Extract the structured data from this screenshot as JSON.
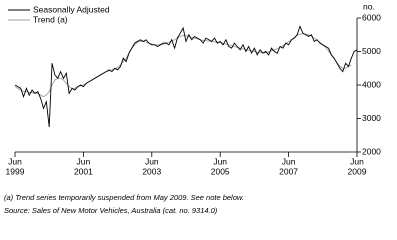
{
  "chart_data": {
    "type": "line",
    "y_label": "no.",
    "notes": [
      "(a) Trend series temporarily suspended from May 2009. See note below.",
      "Source: Sales of New Motor Vehicles, Australia (cat. no. 9314.0)"
    ],
    "x": [
      "1999-06",
      "1999-07",
      "1999-08",
      "1999-09",
      "1999-10",
      "1999-11",
      "1999-12",
      "2000-01",
      "2000-02",
      "2000-03",
      "2000-04",
      "2000-05",
      "2000-06",
      "2000-07",
      "2000-08",
      "2000-09",
      "2000-10",
      "2000-11",
      "2000-12",
      "2001-01",
      "2001-02",
      "2001-03",
      "2001-04",
      "2001-05",
      "2001-06",
      "2001-07",
      "2001-08",
      "2001-09",
      "2001-10",
      "2001-11",
      "2001-12",
      "2002-01",
      "2002-02",
      "2002-03",
      "2002-04",
      "2002-05",
      "2002-06",
      "2002-07",
      "2002-08",
      "2002-09",
      "2002-10",
      "2002-11",
      "2002-12",
      "2003-01",
      "2003-02",
      "2003-03",
      "2003-04",
      "2003-05",
      "2003-06",
      "2003-07",
      "2003-08",
      "2003-09",
      "2003-10",
      "2003-11",
      "2003-12",
      "2004-01",
      "2004-02",
      "2004-03",
      "2004-04",
      "2004-05",
      "2004-06",
      "2004-07",
      "2004-08",
      "2004-09",
      "2004-10",
      "2004-11",
      "2004-12",
      "2005-01",
      "2005-02",
      "2005-03",
      "2005-04",
      "2005-05",
      "2005-06",
      "2005-07",
      "2005-08",
      "2005-09",
      "2005-10",
      "2005-11",
      "2005-12",
      "2006-01",
      "2006-02",
      "2006-03",
      "2006-04",
      "2006-05",
      "2006-06",
      "2006-07",
      "2006-08",
      "2006-09",
      "2006-10",
      "2006-11",
      "2006-12",
      "2007-01",
      "2007-02",
      "2007-03",
      "2007-04",
      "2007-05",
      "2007-06",
      "2007-07",
      "2007-08",
      "2007-09",
      "2007-10",
      "2007-11",
      "2007-12",
      "2008-01",
      "2008-02",
      "2008-03",
      "2008-04",
      "2008-05",
      "2008-06",
      "2008-07",
      "2008-08",
      "2008-09",
      "2008-10",
      "2008-11",
      "2008-12",
      "2009-01",
      "2009-02",
      "2009-03",
      "2009-04",
      "2009-05",
      "2009-06"
    ],
    "series": [
      {
        "name": "Seasonally Adjusted",
        "color": "#000000",
        "values": [
          4000,
          3950,
          3900,
          3650,
          3900,
          3700,
          3850,
          3750,
          3800,
          3600,
          3300,
          3500,
          2750,
          4650,
          4300,
          4200,
          4400,
          4200,
          4350,
          3750,
          3900,
          3850,
          3950,
          4000,
          3950,
          4050,
          4100,
          4150,
          4200,
          4250,
          4300,
          4350,
          4400,
          4450,
          4400,
          4500,
          4450,
          4550,
          4800,
          4700,
          4950,
          5100,
          5250,
          5300,
          5350,
          5300,
          5350,
          5250,
          5200,
          5200,
          5150,
          5200,
          5250,
          5250,
          5200,
          5350,
          5100,
          5400,
          5550,
          5700,
          5300,
          5500,
          5350,
          5450,
          5400,
          5350,
          5250,
          5400,
          5350,
          5300,
          5400,
          5250,
          5300,
          5200,
          5350,
          5150,
          5100,
          5250,
          5150,
          5050,
          5200,
          5000,
          5150,
          4950,
          5100,
          4900,
          5050,
          4950,
          5000,
          4900,
          5100,
          5000,
          4950,
          5150,
          5100,
          5250,
          5200,
          5350,
          5400,
          5500,
          5750,
          5550,
          5500,
          5450,
          5500,
          5300,
          5350,
          5250,
          5200,
          5150,
          5100,
          4900,
          4800,
          4650,
          4500,
          4400,
          4650,
          4550,
          4800,
          5000,
          5050
        ]
      },
      {
        "name": "Trend (a)",
        "color": "#a0a0a0",
        "values": [
          3950,
          3900,
          3850,
          3800,
          3800,
          3780,
          3770,
          3760,
          3750,
          3700,
          3650,
          3700,
          3800,
          4000,
          4150,
          4200,
          4200,
          4150,
          4050,
          3950,
          3900,
          3900,
          3950,
          3980,
          4000,
          4050,
          4100,
          4150,
          4200,
          4250,
          4300,
          4350,
          4400,
          4420,
          4450,
          4480,
          4520,
          4600,
          4700,
          4800,
          4950,
          5100,
          5200,
          5280,
          5300,
          5300,
          5280,
          5250,
          5220,
          5200,
          5200,
          5200,
          5220,
          5250,
          5280,
          5320,
          5350,
          5400,
          5450,
          5480,
          5470,
          5450,
          5420,
          5400,
          5380,
          5350,
          5330,
          5320,
          5310,
          5300,
          5290,
          5280,
          5260,
          5240,
          5220,
          5200,
          5170,
          5150,
          5120,
          5100,
          5080,
          5060,
          5040,
          5020,
          5000,
          4980,
          4970,
          4960,
          4970,
          4990,
          5020,
          5050,
          5080,
          5120,
          5170,
          5230,
          5290,
          5350,
          5420,
          5480,
          5520,
          5530,
          5520,
          5500,
          5460,
          5400,
          5340,
          5270,
          5200,
          5120,
          5020,
          4900,
          4780,
          4660,
          4560,
          4500,
          4500,
          4550,
          4600,
          null,
          null
        ]
      }
    ],
    "xlim": [
      "1999-06",
      "2009-06"
    ],
    "xticks": [
      {
        "value": "1999-06",
        "label": [
          "Jun",
          "1999"
        ]
      },
      {
        "value": "2001-06",
        "label": [
          "Jun",
          "2001"
        ]
      },
      {
        "value": "2003-06",
        "label": [
          "Jun",
          "2003"
        ]
      },
      {
        "value": "2005-06",
        "label": [
          "Jun",
          "2005"
        ]
      },
      {
        "value": "2007-06",
        "label": [
          "Jun",
          "2007"
        ]
      },
      {
        "value": "2009-06",
        "label": [
          "Jun",
          "2009"
        ]
      }
    ],
    "ylim": [
      2000,
      6000
    ],
    "yticks": [
      2000,
      3000,
      4000,
      5000,
      6000
    ],
    "legend": "top-left"
  }
}
